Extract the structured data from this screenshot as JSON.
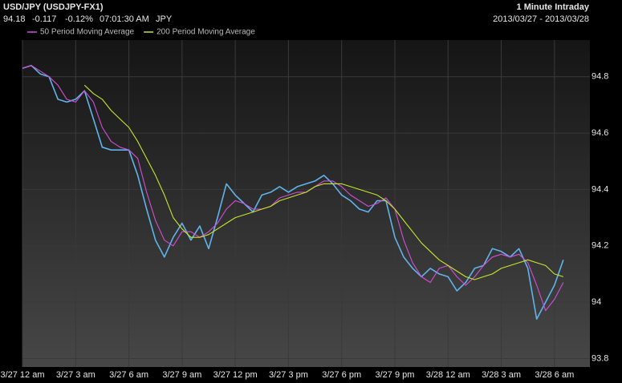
{
  "chart_data": {
    "type": "line",
    "title": "USD/JPY (USDJPY-FX1)",
    "quote": {
      "last": "94.18",
      "change": "-0.117",
      "change_pct": "-0.12%",
      "time": "07:01:30 AM",
      "currency": "JPY"
    },
    "interval": "1 Minute Intraday",
    "date_range": "2013/03/27 - 2013/03/28",
    "categories": [
      "3/27 12 am",
      null,
      null,
      null,
      null,
      null,
      "3/27 3 am",
      null,
      null,
      null,
      null,
      null,
      "3/27 6 am",
      null,
      null,
      null,
      null,
      null,
      "3/27 9 am",
      null,
      null,
      null,
      null,
      null,
      "3/27 12 pm",
      null,
      null,
      null,
      null,
      null,
      "3/27 3 pm",
      null,
      null,
      null,
      null,
      null,
      "3/27 6 pm",
      null,
      null,
      null,
      null,
      null,
      "3/27 9 pm",
      null,
      null,
      null,
      null,
      null,
      "3/28 12 am",
      null,
      null,
      null,
      null,
      null,
      "3/28 3 am",
      null,
      null,
      null,
      null,
      null,
      "3/28 6 am",
      null,
      null,
      null
    ],
    "series": [
      {
        "color": "#5fb4ec",
        "values": [
          94.83,
          94.84,
          94.81,
          94.8,
          94.72,
          94.71,
          94.72,
          94.75,
          94.65,
          94.55,
          94.54,
          94.54,
          94.54,
          94.45,
          94.33,
          94.22,
          94.16,
          94.23,
          94.28,
          94.22,
          94.27,
          94.19,
          94.3,
          94.42,
          94.38,
          94.35,
          94.32,
          94.38,
          94.39,
          94.41,
          94.39,
          94.41,
          94.42,
          94.43,
          94.45,
          94.42,
          94.38,
          94.36,
          94.33,
          94.32,
          94.36,
          94.36,
          94.23,
          94.16,
          94.12,
          94.09,
          94.12,
          94.1,
          94.09,
          94.04,
          94.07,
          94.12,
          94.13,
          94.19,
          94.18,
          94.16,
          94.19,
          94.12,
          93.94,
          94.0,
          94.06,
          94.15,
          null,
          null
        ]
      },
      {
        "name": "50 Period Moving Average",
        "color": "#d24fd6",
        "values": [
          94.83,
          94.84,
          94.82,
          94.8,
          94.77,
          94.72,
          94.71,
          94.75,
          94.71,
          94.62,
          94.57,
          94.55,
          94.54,
          94.51,
          94.39,
          94.29,
          94.22,
          94.2,
          94.25,
          94.25,
          94.23,
          94.25,
          94.28,
          94.33,
          94.36,
          94.35,
          94.33,
          94.33,
          94.34,
          94.37,
          94.38,
          94.39,
          94.39,
          94.41,
          94.43,
          94.43,
          94.41,
          94.38,
          94.36,
          94.34,
          94.35,
          94.37,
          94.33,
          94.22,
          94.14,
          94.09,
          94.07,
          94.12,
          94.13,
          94.09,
          94.06,
          94.09,
          94.13,
          94.16,
          94.17,
          94.16,
          94.17,
          94.14,
          94.06,
          93.97,
          94.01,
          94.07,
          null,
          null
        ]
      },
      {
        "name": "200 Period Moving Average",
        "color": "#c8e62a",
        "values": [
          null,
          null,
          null,
          null,
          null,
          null,
          null,
          94.77,
          94.74,
          94.72,
          94.68,
          94.65,
          94.62,
          94.57,
          94.51,
          94.45,
          94.38,
          94.3,
          94.26,
          94.23,
          94.23,
          94.24,
          94.26,
          94.28,
          94.3,
          94.31,
          94.32,
          94.33,
          94.34,
          94.36,
          94.37,
          94.38,
          94.39,
          94.41,
          94.42,
          94.42,
          94.42,
          94.41,
          94.4,
          94.39,
          94.38,
          94.36,
          94.33,
          94.29,
          94.25,
          94.21,
          94.18,
          94.15,
          94.13,
          94.11,
          94.09,
          94.08,
          94.09,
          94.1,
          94.12,
          94.13,
          94.14,
          94.15,
          94.14,
          94.13,
          94.1,
          94.09,
          null,
          null
        ]
      }
    ],
    "ylim": [
      93.77,
      94.93
    ],
    "yticks": [
      93.8,
      94,
      94.2,
      94.4,
      94.6,
      94.8
    ],
    "grid": true
  }
}
